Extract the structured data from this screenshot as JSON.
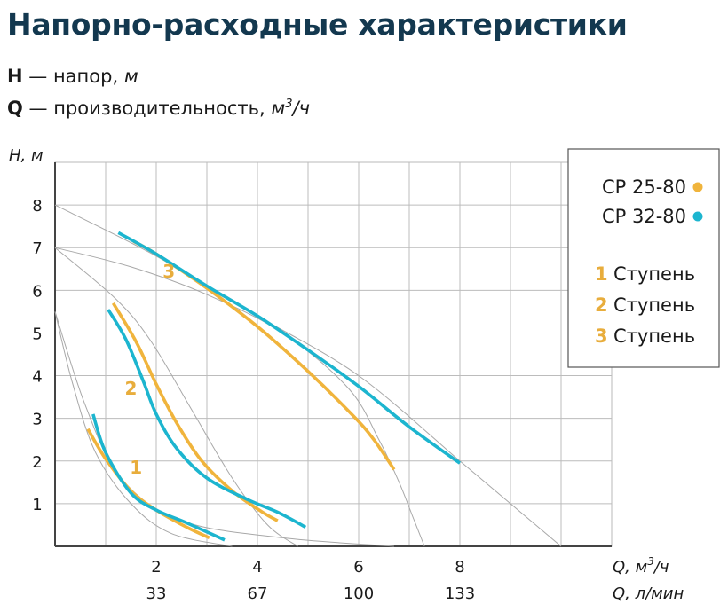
{
  "header": {
    "title": "Напорно-расходные характеристики",
    "h_symbol": "H",
    "h_dash": "—",
    "h_desc": "напор,",
    "h_unit": "м",
    "q_symbol": "Q",
    "q_dash": "—",
    "q_desc": "производительность,",
    "q_unit_base": "м",
    "q_unit_sup": "3",
    "q_unit_tail": "/ч"
  },
  "legend": {
    "series": [
      {
        "label": "CP 25-80",
        "color": "#f0b43c"
      },
      {
        "label": "CP 32-80",
        "color": "#1cb5cf"
      }
    ],
    "stages": [
      {
        "num": "1",
        "label": "Ступень"
      },
      {
        "num": "2",
        "label": "Ступень"
      },
      {
        "num": "3",
        "label": "Ступень"
      }
    ]
  },
  "chart_data": {
    "type": "line",
    "ylabel": "H, м",
    "xlabel_primary": {
      "base": "Q, м",
      "sup": "3",
      "tail": "/ч"
    },
    "xlabel_secondary": "Q, л/мин",
    "xlim": [
      0,
      11
    ],
    "ylim": [
      0,
      9
    ],
    "y_ticks": [
      1,
      2,
      3,
      4,
      5,
      6,
      7,
      8
    ],
    "x_ticks": [
      {
        "value": 2,
        "label": "2",
        "sub": "33"
      },
      {
        "value": 4,
        "label": "4",
        "sub": "67"
      },
      {
        "value": 6,
        "label": "6",
        "sub": "100"
      },
      {
        "value": 8,
        "label": "8",
        "sub": "133"
      }
    ],
    "grid": true,
    "legend_position": "top-right",
    "series": [
      {
        "color": "#f0b43c",
        "stage": "1",
        "points": [
          [
            0.65,
            2.75
          ],
          [
            1.0,
            2.05
          ],
          [
            1.5,
            1.3
          ],
          [
            2.0,
            0.85
          ],
          [
            2.6,
            0.45
          ],
          [
            3.05,
            0.2
          ]
        ]
      },
      {
        "color": "#1cb5cf",
        "stage": "1",
        "points": [
          [
            0.75,
            3.1
          ],
          [
            1.0,
            2.2
          ],
          [
            1.5,
            1.25
          ],
          [
            2.0,
            0.85
          ],
          [
            2.6,
            0.55
          ],
          [
            3.35,
            0.15
          ]
        ]
      },
      {
        "color": "#f0b43c",
        "stage": "2",
        "points": [
          [
            1.15,
            5.7
          ],
          [
            1.6,
            4.8
          ],
          [
            2.0,
            3.8
          ],
          [
            2.4,
            2.9
          ],
          [
            2.9,
            2.0
          ],
          [
            3.5,
            1.3
          ],
          [
            4.1,
            0.8
          ],
          [
            4.4,
            0.6
          ]
        ]
      },
      {
        "color": "#1cb5cf",
        "stage": "2",
        "points": [
          [
            1.05,
            5.55
          ],
          [
            1.4,
            4.85
          ],
          [
            1.75,
            3.85
          ],
          [
            2.0,
            3.1
          ],
          [
            2.4,
            2.3
          ],
          [
            3.0,
            1.6
          ],
          [
            3.8,
            1.1
          ],
          [
            4.4,
            0.8
          ],
          [
            4.95,
            0.45
          ]
        ]
      },
      {
        "color": "#f0b43c",
        "stage": "3",
        "points": [
          [
            1.55,
            7.15
          ],
          [
            2.0,
            6.85
          ],
          [
            3.0,
            6.05
          ],
          [
            4.0,
            5.15
          ],
          [
            5.0,
            4.1
          ],
          [
            5.9,
            3.05
          ],
          [
            6.3,
            2.5
          ],
          [
            6.7,
            1.8
          ]
        ]
      },
      {
        "color": "#1cb5cf",
        "stage": "3",
        "points": [
          [
            1.25,
            7.35
          ],
          [
            2.0,
            6.85
          ],
          [
            3.0,
            6.1
          ],
          [
            4.0,
            5.4
          ],
          [
            5.0,
            4.6
          ],
          [
            6.0,
            3.75
          ],
          [
            7.0,
            2.8
          ],
          [
            8.0,
            1.95
          ]
        ]
      }
    ],
    "system_curves": [
      [
        [
          0.0,
          8.0
        ],
        [
          2.0,
          6.8
        ],
        [
          4.0,
          5.4
        ],
        [
          6.0,
          4.0
        ],
        [
          8.0,
          2.0
        ],
        [
          9.0,
          1.0
        ],
        [
          10.0,
          0.0
        ]
      ],
      [
        [
          0.0,
          7.0
        ],
        [
          1.2,
          5.8
        ],
        [
          1.9,
          4.8
        ],
        [
          2.7,
          3.2
        ],
        [
          3.5,
          1.6
        ],
        [
          4.2,
          0.5
        ],
        [
          4.8,
          0.0
        ]
      ],
      [
        [
          0.0,
          7.0
        ],
        [
          1.5,
          6.55
        ],
        [
          3.0,
          5.9
        ],
        [
          4.5,
          5.0
        ],
        [
          5.8,
          3.7
        ],
        [
          6.4,
          2.5
        ],
        [
          6.8,
          1.5
        ],
        [
          7.1,
          0.6
        ],
        [
          7.3,
          0.0
        ]
      ],
      [
        [
          0.0,
          5.5
        ],
        [
          0.35,
          3.8
        ],
        [
          0.8,
          2.2
        ],
        [
          1.5,
          1.0
        ],
        [
          2.3,
          0.3
        ],
        [
          3.5,
          0.0
        ]
      ],
      [
        [
          0.0,
          5.5
        ],
        [
          0.6,
          3.3
        ],
        [
          1.3,
          1.6
        ],
        [
          2.5,
          0.6
        ],
        [
          4.5,
          0.2
        ],
        [
          6.7,
          0.0
        ]
      ]
    ],
    "stage_labels": [
      {
        "text": "1",
        "x": 1.6,
        "y": 1.7
      },
      {
        "text": "2",
        "x": 1.5,
        "y": 3.55
      },
      {
        "text": "3",
        "x": 2.25,
        "y": 6.3
      }
    ]
  }
}
